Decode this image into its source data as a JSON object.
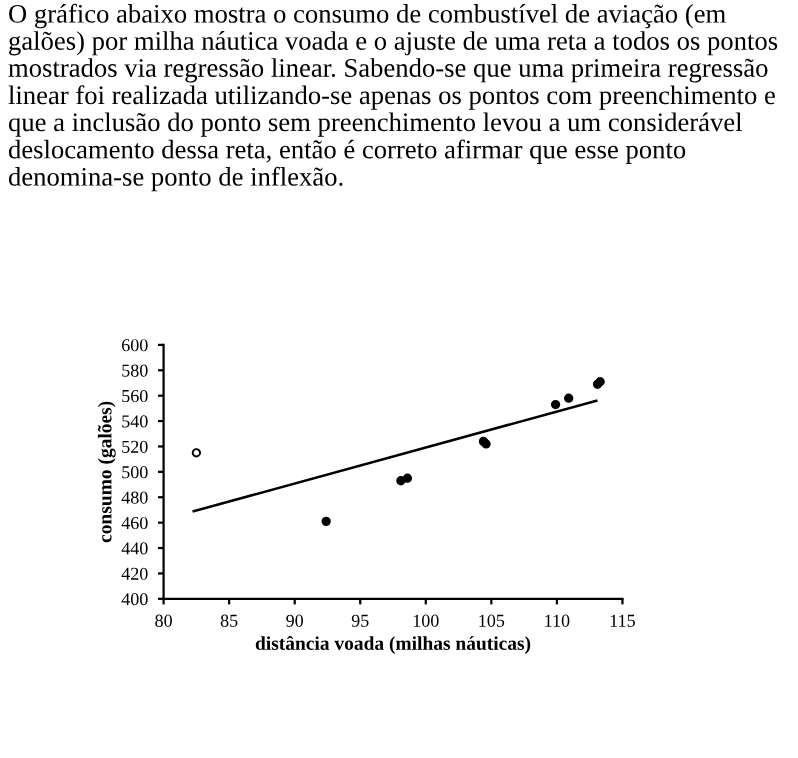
{
  "chart_data": {
    "type": "scatter",
    "title": "O gráfico abaixo mostra o consumo de combustível de aviação (em galões) por milha náutica voada e o ajuste de uma reta a todos os pontos mostrados via regressão linear. Sabendo-se que uma primeira regressão linear foi realizada utilizando-se apenas os pontos com preenchimento e que a inclusão do ponto sem preenchimento levou a um considerável deslocamento dessa reta, então é correto afirmar que esse ponto denomina-se ponto de inflexão.",
    "xlabel": "distância voada (milhas náuticas)",
    "ylabel": "consumo (galões)",
    "xlim": [
      80,
      115
    ],
    "xticks": [
      80,
      85,
      90,
      95,
      100,
      105,
      110,
      115
    ],
    "ylim": [
      400,
      600
    ],
    "yticks": [
      400,
      420,
      440,
      460,
      480,
      500,
      520,
      540,
      560,
      580,
      600
    ],
    "grid": false,
    "legend": false,
    "series": [
      {
        "marker": "circle",
        "color": "#000000",
        "x": [
          92.4,
          98.1,
          98.6,
          104.4,
          104.6,
          109.9,
          110.9,
          113.1,
          113.3
        ],
        "values": [
          461,
          493,
          495,
          524,
          522,
          553,
          558,
          569,
          571
        ]
      },
      {
        "marker": "circle",
        "color": "#ffffff",
        "x": [
          82.5
        ],
        "values": [
          515
        ]
      },
      {
        "type": "line",
        "marker": "none",
        "color": "#000000",
        "x": [
          82.3,
          113
        ],
        "values": [
          469,
          556
        ]
      }
    ]
  }
}
